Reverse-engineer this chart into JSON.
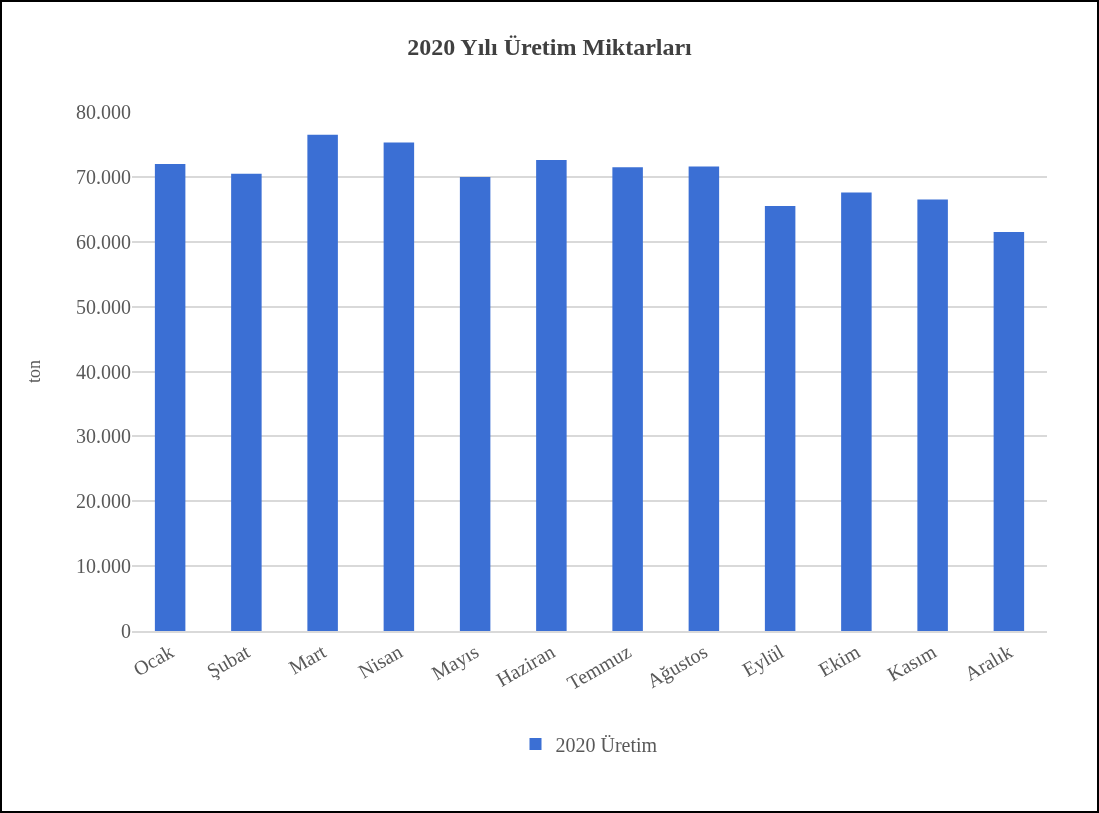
{
  "chart_data": {
    "type": "bar",
    "title": "2020 Yılı Üretim Miktarları",
    "ylabel": "ton",
    "categories": [
      "Ocak",
      "Şubat",
      "Mart",
      "Nisan",
      "Mayıs",
      "Haziran",
      "Temmuz",
      "Ağustos",
      "Eylül",
      "Ekim",
      "Kasım",
      "Aralık"
    ],
    "series": [
      {
        "name": "2020 Üretim",
        "color": "#3b6fd4",
        "values": [
          72000,
          70500,
          76500,
          75300,
          70000,
          72600,
          71500,
          71600,
          65500,
          67600,
          66500,
          61500
        ]
      }
    ],
    "ylim": [
      0,
      80000
    ],
    "yticks": [
      {
        "value": 0,
        "label": "0"
      },
      {
        "value": 10000,
        "label": "10.000"
      },
      {
        "value": 20000,
        "label": "20.000"
      },
      {
        "value": 30000,
        "label": "30.000"
      },
      {
        "value": 40000,
        "label": "40.000"
      },
      {
        "value": 50000,
        "label": "50.000"
      },
      {
        "value": 60000,
        "label": "60.000"
      },
      {
        "value": 70000,
        "label": "70.000"
      },
      {
        "value": 80000,
        "label": "80.000"
      }
    ],
    "grid": "y",
    "legend": "bottom"
  }
}
